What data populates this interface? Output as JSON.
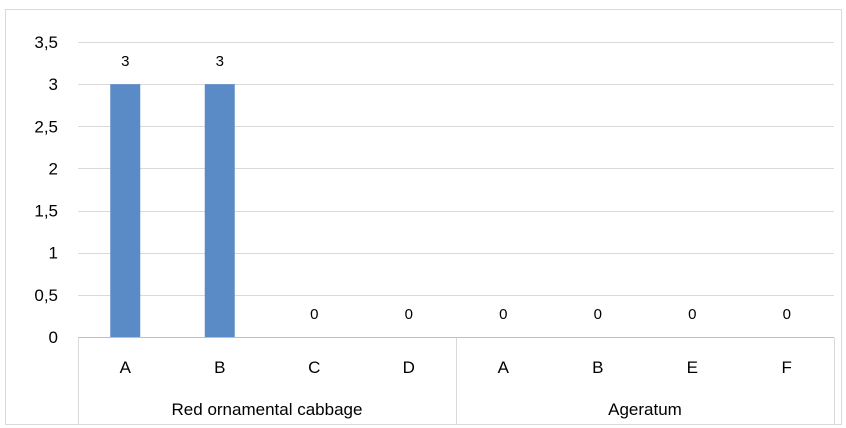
{
  "chart_data": {
    "type": "bar",
    "title": "",
    "xlabel": "",
    "ylabel": "",
    "ylim": [
      0,
      3.5
    ],
    "y_ticks": [
      0,
      0.5,
      1,
      1.5,
      2,
      2.5,
      3,
      3.5
    ],
    "y_tick_labels": [
      "0",
      "0,5",
      "1",
      "1,5",
      "2",
      "2,5",
      "3",
      "3,5"
    ],
    "grid": true,
    "legend": "none",
    "bar_color": "#5b8bc6",
    "groups": [
      {
        "name": "Red ornamental cabbage",
        "categories": [
          "A",
          "B",
          "C",
          "D"
        ]
      },
      {
        "name": "Ageratum",
        "categories": [
          "A",
          "B",
          "E",
          "F"
        ]
      }
    ],
    "categories": [
      "A",
      "B",
      "C",
      "D",
      "A",
      "B",
      "E",
      "F"
    ],
    "values": [
      3,
      3,
      0,
      0,
      0,
      0,
      0,
      0
    ],
    "data_labels": [
      "3",
      "3",
      "0",
      "0",
      "0",
      "0",
      "0",
      "0"
    ]
  }
}
